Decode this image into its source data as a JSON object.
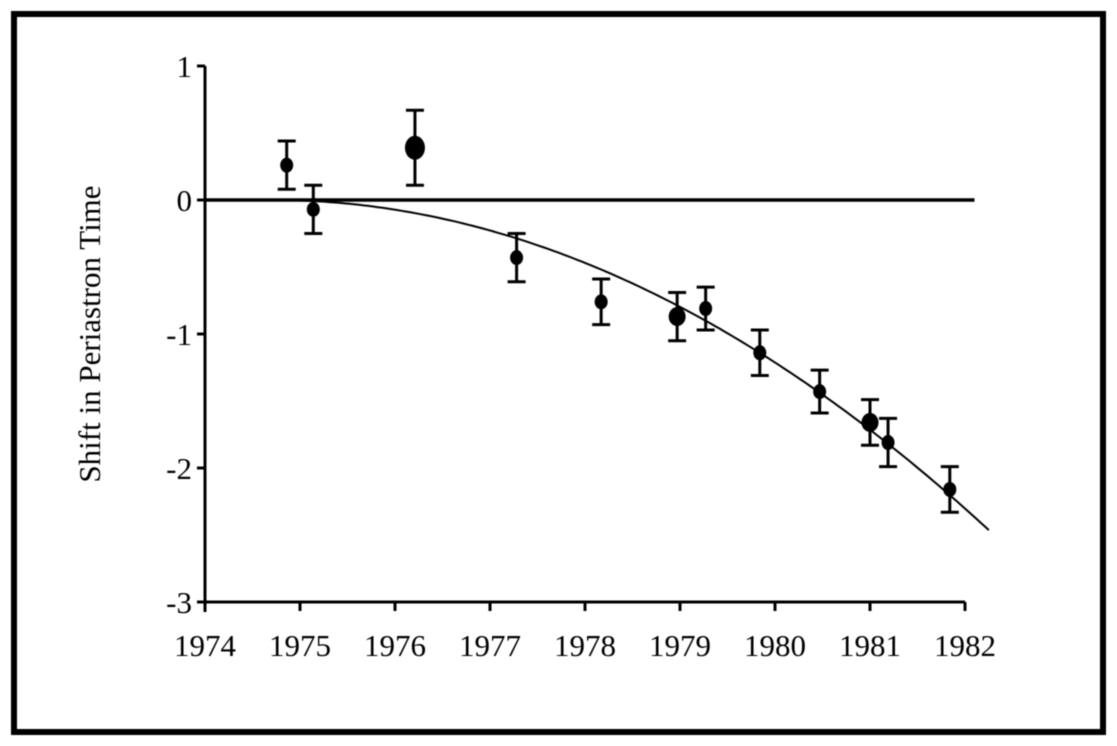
{
  "figure": {
    "background": "#ffffff",
    "border_color": "#000000"
  },
  "chart_data": {
    "type": "scatter",
    "title": "",
    "xlabel": "",
    "ylabel": "Shift in Periastron Time",
    "xlim": [
      1974,
      1982.3
    ],
    "ylim": [
      -3,
      1
    ],
    "xticks": [
      1974,
      1975,
      1976,
      1977,
      1978,
      1979,
      1980,
      1981,
      1982
    ],
    "yticks": [
      1,
      0,
      -1,
      -2,
      -3
    ],
    "grid": false,
    "legend": null,
    "zero_line": {
      "y": 0,
      "x_start": 1974,
      "x_end": 1982.1
    },
    "points": [
      {
        "x": 1974.86,
        "y": 0.26,
        "err": 0.18,
        "size": "normal"
      },
      {
        "x": 1975.14,
        "y": -0.07,
        "err": 0.18,
        "size": "normal"
      },
      {
        "x": 1976.21,
        "y": 0.39,
        "err": 0.28,
        "size": "large"
      },
      {
        "x": 1977.28,
        "y": -0.43,
        "err": 0.18,
        "size": "normal"
      },
      {
        "x": 1978.17,
        "y": -0.76,
        "err": 0.17,
        "size": "normal"
      },
      {
        "x": 1978.97,
        "y": -0.87,
        "err": 0.18,
        "size": "medium"
      },
      {
        "x": 1979.27,
        "y": -0.81,
        "err": 0.16,
        "size": "normal"
      },
      {
        "x": 1979.84,
        "y": -1.14,
        "err": 0.17,
        "size": "normal"
      },
      {
        "x": 1980.47,
        "y": -1.43,
        "err": 0.16,
        "size": "normal"
      },
      {
        "x": 1981.0,
        "y": -1.66,
        "err": 0.17,
        "size": "medium"
      },
      {
        "x": 1981.19,
        "y": -1.81,
        "err": 0.18,
        "size": "normal"
      },
      {
        "x": 1981.84,
        "y": -2.16,
        "err": 0.17,
        "size": "normal"
      }
    ],
    "fit_curve": {
      "type": "quadratic",
      "origin": 1974,
      "a": -0.0433,
      "b": 0.0613,
      "c": -0.0217,
      "t_start": 1974.62,
      "t_end": 1982.25
    },
    "colors": {
      "data": "#000000",
      "curve": "#000000",
      "axis": "#000000"
    }
  }
}
